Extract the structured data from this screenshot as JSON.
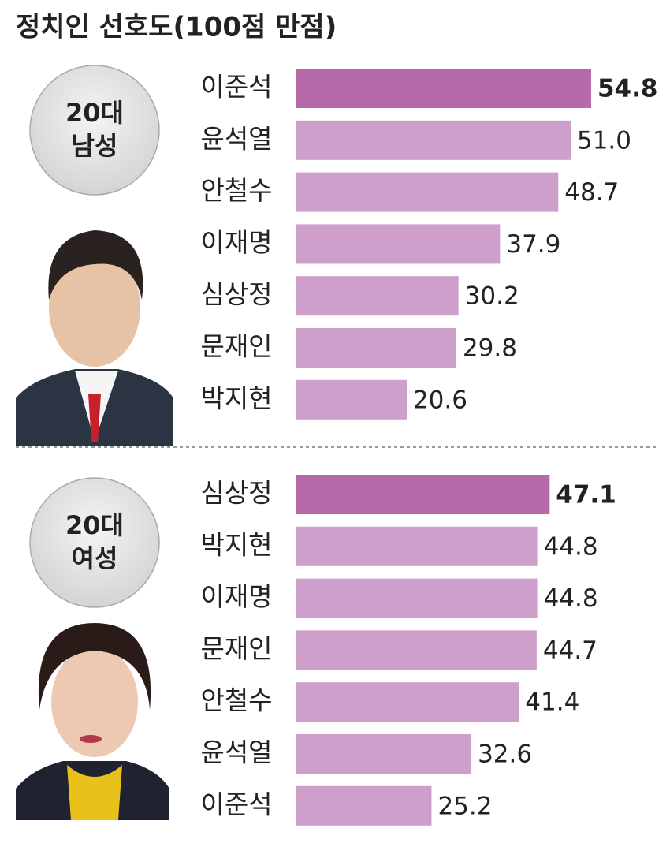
{
  "title": "정치인 선호도(100점 만점)",
  "chart_data": [
    {
      "type": "bar",
      "group_label": [
        "20대",
        "남성"
      ],
      "categories": [
        "이준석",
        "윤석열",
        "안철수",
        "이재명",
        "심상정",
        "문재인",
        "박지현"
      ],
      "values": [
        54.8,
        51.0,
        48.7,
        37.9,
        30.2,
        29.8,
        20.6
      ],
      "value_labels": [
        "54.8",
        "51.0",
        "48.7",
        "37.9",
        "30.2",
        "29.8",
        "20.6"
      ],
      "color": "#cd9fca",
      "highlight_color": "#b66aa9",
      "highlight": 0
    },
    {
      "type": "bar",
      "group_label": [
        "20대",
        "여성"
      ],
      "categories": [
        "심상정",
        "박지현",
        "이재명",
        "문재인",
        "안철수",
        "윤석열",
        "이준석"
      ],
      "values": [
        47.1,
        44.8,
        44.8,
        44.7,
        41.4,
        32.6,
        25.2
      ],
      "value_labels": [
        "47.1",
        "44.8",
        "44.8",
        "44.7",
        "41.4",
        "32.6",
        "25.2"
      ],
      "color": "#cd9fca",
      "highlight_color": "#b66aa9",
      "highlight": 0
    }
  ]
}
